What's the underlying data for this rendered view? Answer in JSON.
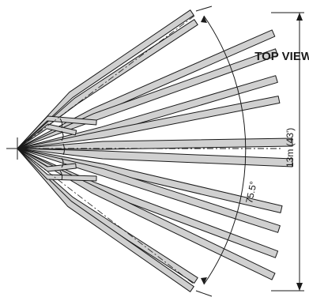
{
  "title": "TOP VIEW",
  "angle_label": "75.5°",
  "range_label": "13m (43')",
  "zones": {
    "long": {
      "count": 12,
      "color": "#d0d0d0"
    },
    "short": {
      "count": 6,
      "color": "#d0d0d0"
    }
  },
  "outline_color": "#1a1a1a"
}
